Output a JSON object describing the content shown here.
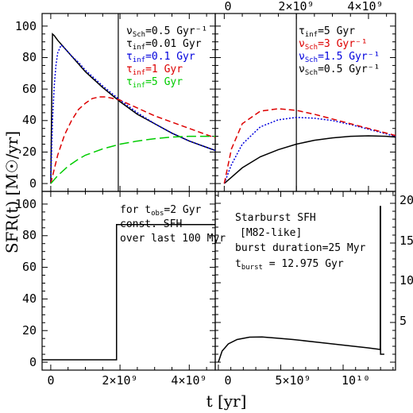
{
  "figure": {
    "xlabel": "t [yr]",
    "ylabel": "SFR(t) [M☉/yr]",
    "bottom_xticks_left": [
      "0",
      "2×10⁹",
      "4×10⁹"
    ],
    "bottom_xticks_right": [
      "0",
      "5×10⁹",
      "10¹⁰"
    ],
    "top_xticks_right": [
      "0",
      "2×10⁹",
      "4×10⁹"
    ],
    "left_yticks_top": [
      "0",
      "20",
      "40",
      "60",
      "80",
      "100"
    ],
    "left_yticks_bottom": [
      "0",
      "20",
      "40",
      "60",
      "80",
      "100"
    ],
    "right_yticks_bottom": [
      "5",
      "10",
      "15",
      "20"
    ]
  },
  "chart_data": [
    {
      "panel": "top-left",
      "type": "line",
      "xlim": [
        -250000000.0,
        4750000000.0
      ],
      "ylim": [
        -5,
        108
      ],
      "vline_x": 1950000000.0,
      "legend_lines": [
        {
          "name": "ν",
          "sub": "Sch",
          "rest": "=0.5 Gyr⁻¹",
          "color": "#000000"
        },
        {
          "name": "τ",
          "sub": "inf",
          "rest": "=0.01 Gyr",
          "color": "#000000"
        },
        {
          "name": "τ",
          "sub": "inf",
          "rest": "=0.1 Gyr",
          "color": "#0000dd"
        },
        {
          "name": "τ",
          "sub": "inf",
          "rest": "=1 Gyr",
          "color": "#dd0000"
        },
        {
          "name": "τ",
          "sub": "inf",
          "rest": "=5 Gyr",
          "color": "#00cc00"
        }
      ],
      "series": [
        {
          "color": "#000000",
          "dash": "",
          "x": [
            0,
            50000000.0,
            100000000.0,
            200000000.0,
            400000000.0,
            600000000.0,
            800000000.0,
            1000000000.0,
            1500000000.0,
            2000000000.0,
            2500000000.0,
            3000000000.0,
            3500000000.0,
            4000000000.0,
            4500000000.0,
            4750000000.0
          ],
          "y": [
            0,
            95,
            94,
            91,
            86,
            81,
            76,
            71,
            61,
            52,
            44,
            38,
            32,
            27,
            23,
            21
          ]
        },
        {
          "color": "#0000dd",
          "dash": "2,2",
          "x": [
            0,
            50000000.0,
            100000000.0,
            150000000.0,
            200000000.0,
            300000000.0,
            400000000.0,
            600000000.0,
            800000000.0,
            1000000000.0,
            1500000000.0,
            2000000000.0,
            2500000000.0,
            3000000000.0,
            3500000000.0,
            4000000000.0,
            4500000000.0,
            4750000000.0
          ],
          "y": [
            0,
            40,
            62,
            75,
            83,
            88,
            86,
            81,
            77,
            72,
            62,
            53,
            45,
            38,
            32,
            27,
            23,
            21
          ]
        },
        {
          "color": "#dd0000",
          "dash": "7,4",
          "x": [
            0,
            200000000.0,
            400000000.0,
            600000000.0,
            800000000.0,
            1000000000.0,
            1200000000.0,
            1400000000.0,
            1600000000.0,
            1800000000.0,
            2000000000.0,
            2500000000.0,
            3000000000.0,
            3500000000.0,
            4000000000.0,
            4500000000.0,
            4750000000.0
          ],
          "y": [
            0,
            18,
            31,
            40,
            47,
            51,
            54,
            55,
            55,
            54,
            53,
            48,
            43,
            39,
            35,
            31,
            29
          ]
        },
        {
          "color": "#00cc00",
          "dash": "12,5",
          "x": [
            0,
            200000000.0,
            500000000.0,
            800000000.0,
            1000000000.0,
            1500000000.0,
            2000000000.0,
            2500000000.0,
            3000000000.0,
            3500000000.0,
            4000000000.0,
            4500000000.0,
            4750000000.0
          ],
          "y": [
            0,
            5,
            11,
            15.5,
            18,
            22,
            25,
            27,
            28.5,
            29.5,
            30,
            30,
            30
          ]
        }
      ]
    },
    {
      "panel": "top-right",
      "type": "line",
      "xlim": [
        -250000000.0,
        4750000000.0
      ],
      "ylim": [
        -5,
        108
      ],
      "vline_x": 2000000000.0,
      "legend_lines": [
        {
          "name": "τ",
          "sub": "inf",
          "rest": "=5 Gyr",
          "color": "#000000"
        },
        {
          "name": "ν",
          "sub": "Sch",
          "rest": "=3 Gyr⁻¹",
          "color": "#dd0000"
        },
        {
          "name": "ν",
          "sub": "Sch",
          "rest": "=1.5 Gyr⁻¹",
          "color": "#0000dd"
        },
        {
          "name": "ν",
          "sub": "Sch",
          "rest": "=0.5 Gyr⁻¹",
          "color": "#000000"
        }
      ],
      "series": [
        {
          "color": "#000000",
          "dash": "",
          "x": [
            0,
            200000000.0,
            500000000.0,
            1000000000.0,
            1500000000.0,
            2000000000.0,
            2500000000.0,
            3000000000.0,
            3500000000.0,
            4000000000.0,
            4500000000.0,
            4750000000.0
          ],
          "y": [
            0,
            4,
            10,
            17,
            21.5,
            25,
            27.5,
            29,
            30,
            30.3,
            30,
            29.5
          ]
        },
        {
          "color": "#0000dd",
          "dash": "2,2",
          "x": [
            0,
            200000000.0,
            500000000.0,
            1000000000.0,
            1500000000.0,
            2000000000.0,
            2500000000.0,
            3000000000.0,
            3500000000.0,
            4000000000.0,
            4500000000.0,
            4750000000.0
          ],
          "y": [
            0,
            12,
            25,
            36,
            40.5,
            42,
            41.5,
            40,
            37.5,
            34.5,
            31.5,
            30
          ]
        },
        {
          "color": "#dd0000",
          "dash": "7,4",
          "x": [
            0,
            200000000.0,
            500000000.0,
            1000000000.0,
            1500000000.0,
            2000000000.0,
            2500000000.0,
            3000000000.0,
            3500000000.0,
            4000000000.0,
            4500000000.0,
            4750000000.0
          ],
          "y": [
            0,
            22,
            38,
            46,
            47.5,
            46.5,
            44,
            41,
            38,
            35,
            32,
            30.5
          ]
        }
      ]
    },
    {
      "panel": "bottom-left",
      "type": "line",
      "xlim": [
        -250000000.0,
        4750000000.0
      ],
      "ylim": [
        -5,
        108
      ],
      "notes": [
        "const. SFH",
        "over last 100 Myr"
      ],
      "note_tobs": {
        "prefix": "for t",
        "sub": "obs",
        "rest": "=2 Gyr"
      },
      "series": [
        {
          "color": "#000000",
          "dash": "",
          "x": [
            -250000000.0,
            1900000000.0,
            1900000000.0,
            4750000000.0
          ],
          "y": [
            1.5,
            1.5,
            87,
            87
          ]
        }
      ]
    },
    {
      "panel": "bottom-right",
      "type": "line",
      "xlim": [
        -250000000.0,
        14200000000.0
      ],
      "ylim": [
        -1,
        21.5
      ],
      "notes": [
        "Starburst SFH",
        "[M82-like]",
        "burst duration=25 Myr"
      ],
      "note_tburst": {
        "prefix": "t",
        "sub": "burst",
        "rest": " = 12.975 Gyr"
      },
      "series": [
        {
          "color": "#000000",
          "dash": "",
          "x": [
            0,
            300000000.0,
            800000000.0,
            1500000000.0,
            2500000000.0,
            3500000000.0,
            4500000000.0,
            6000000000.0,
            8000000000.0,
            10000000000.0,
            12000000000.0,
            12975000000.0,
            12975000000.0,
            13000000000.0,
            13000000000.0,
            13300000000.0
          ],
          "y": [
            0,
            1.4,
            2.3,
            2.85,
            3.15,
            3.18,
            3.05,
            2.85,
            2.5,
            2.15,
            1.8,
            1.6,
            19.6,
            19.6,
            1.0,
            1.0
          ]
        }
      ]
    }
  ]
}
